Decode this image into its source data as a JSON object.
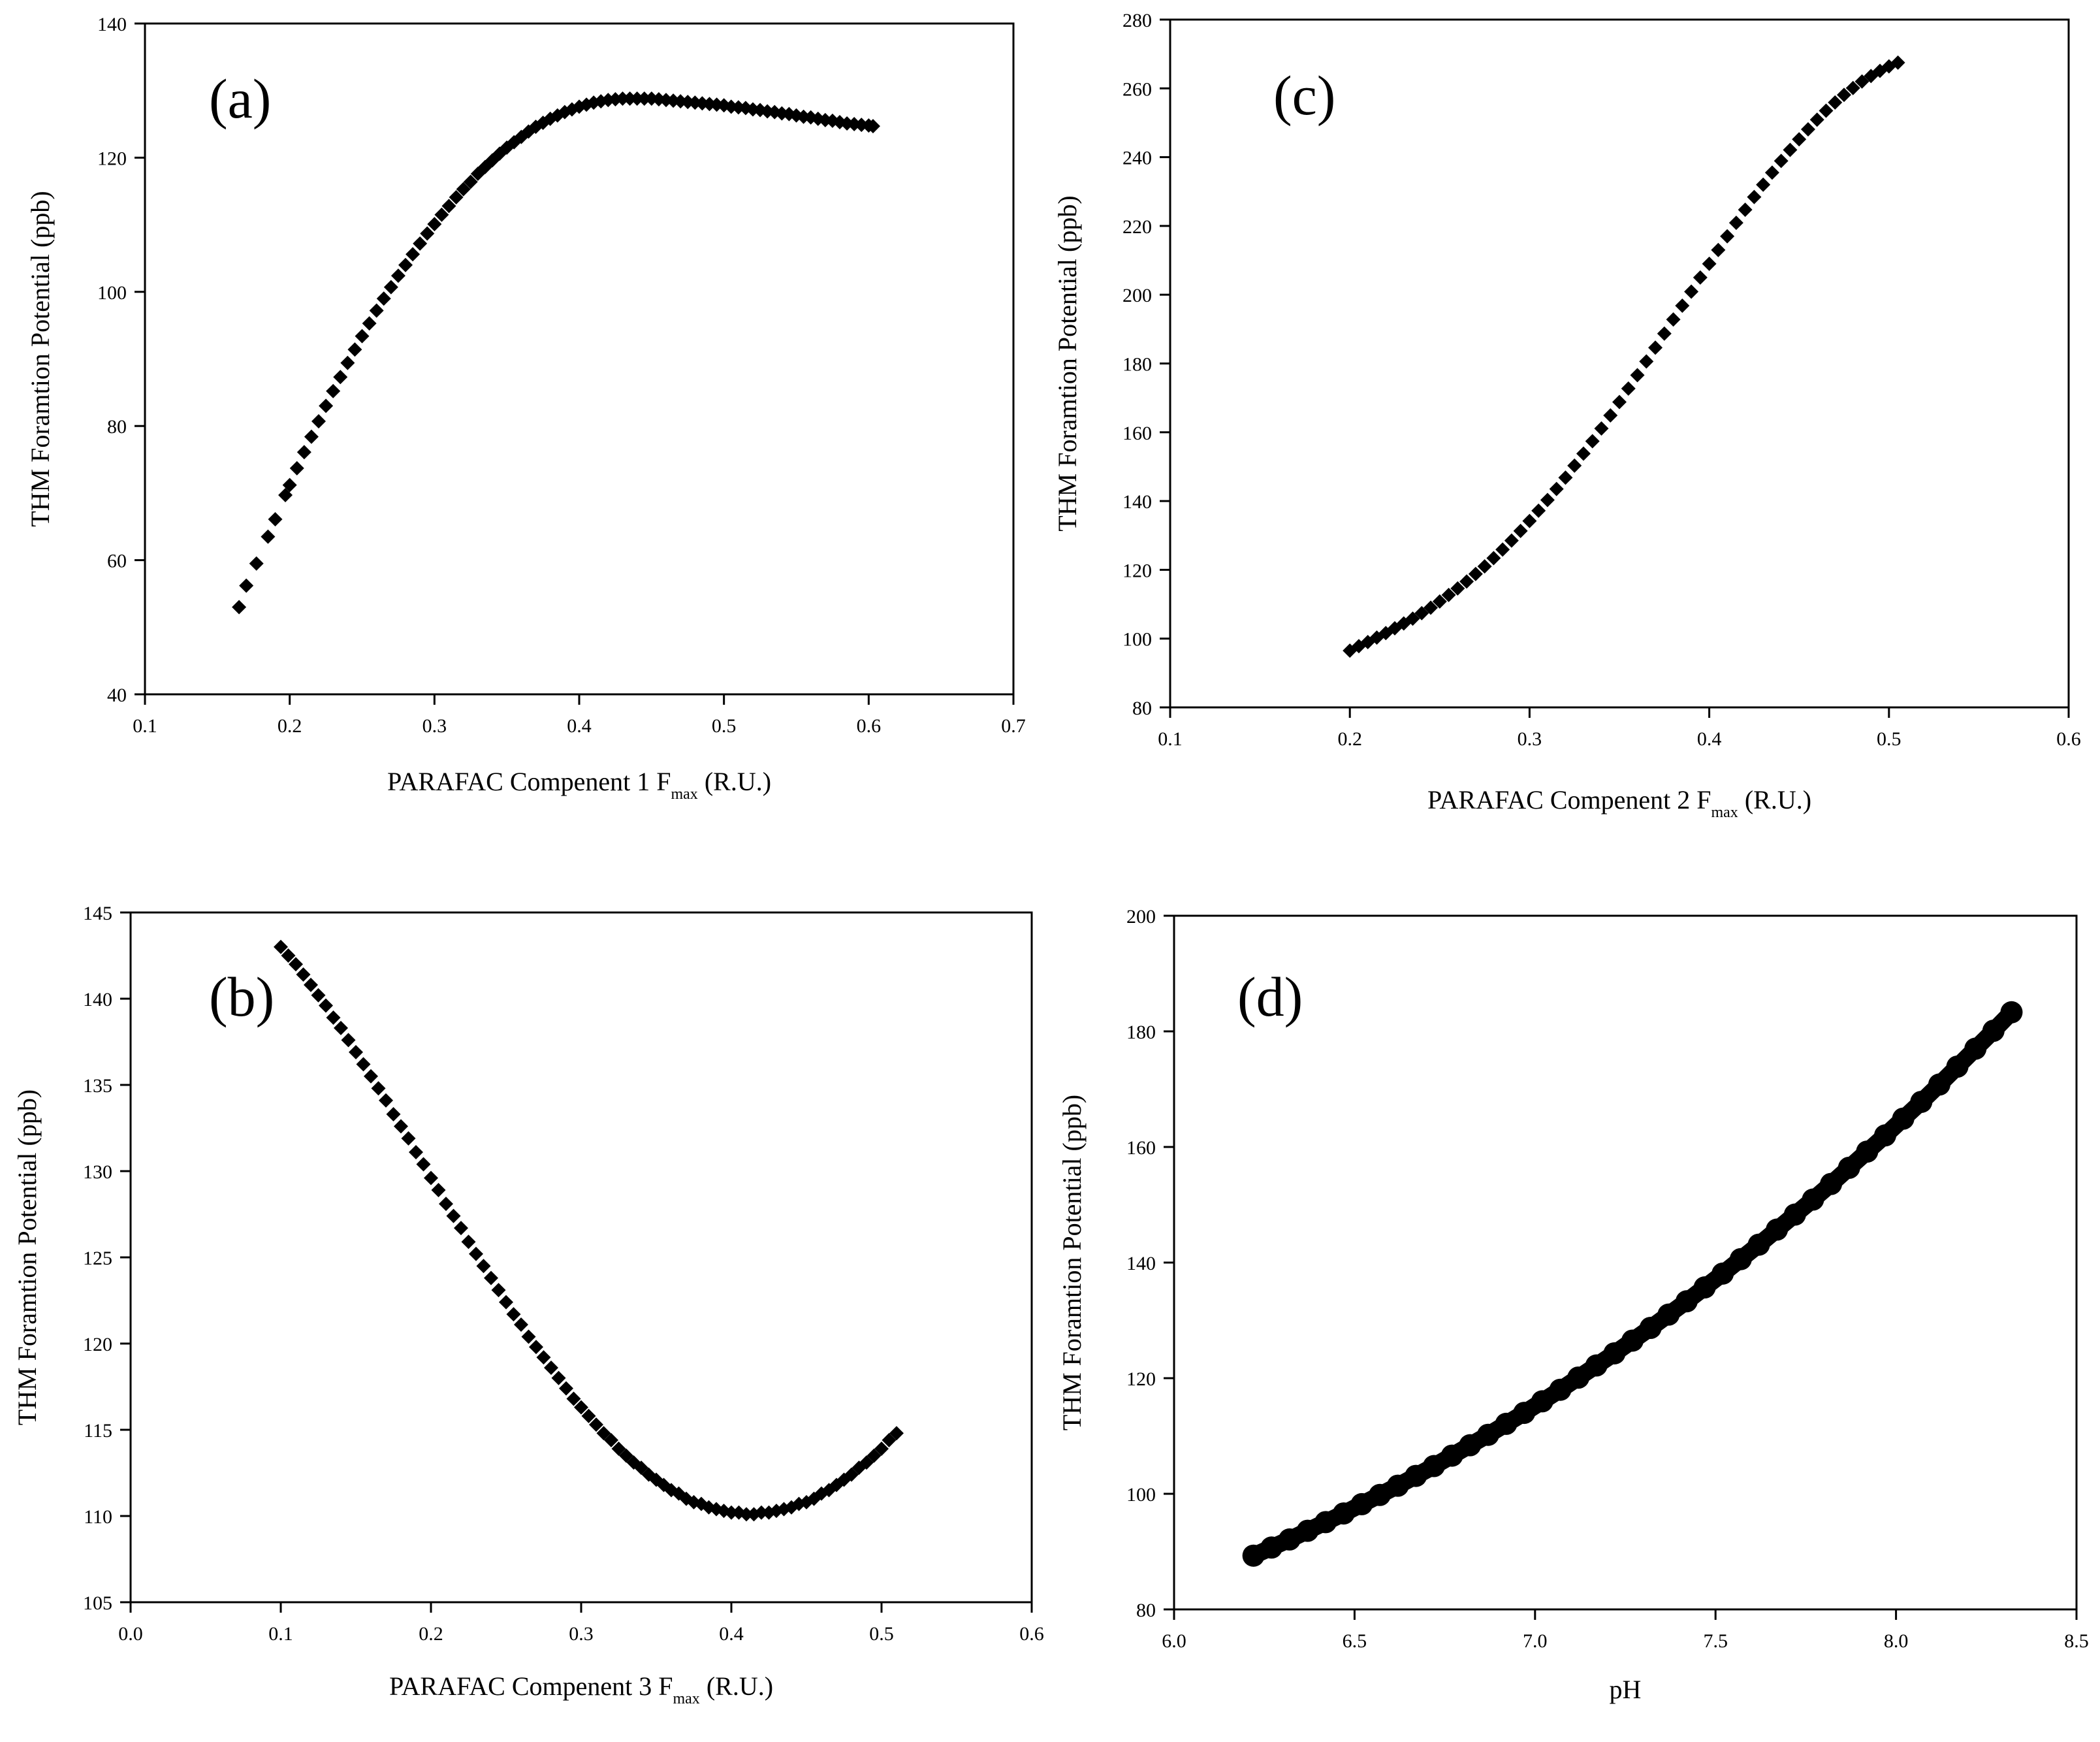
{
  "chart_data": [
    {
      "type": "scatter",
      "panel_label": "(a)",
      "xlabel": "PARAFAC Compenent 1 F",
      "xlabel_sub": "max",
      "xlabel_suffix": " (R.U.)",
      "ylabel": "THM Foramtion Potential (ppb)",
      "xlim": [
        0.1,
        0.7
      ],
      "ylim": [
        40,
        140
      ],
      "xticks": [
        "0.1",
        "0.2",
        "0.3",
        "0.4",
        "0.5",
        "0.6",
        "0.7"
      ],
      "yticks": [
        "40",
        "60",
        "80",
        "100",
        "120",
        "140"
      ],
      "grid": false,
      "series": [
        {
          "x": [
            0.165,
            0.17,
            0.177,
            0.185,
            0.19,
            0.197,
            0.2,
            0.205,
            0.21,
            0.215,
            0.22,
            0.225,
            0.23,
            0.235,
            0.24,
            0.245,
            0.25,
            0.255,
            0.26,
            0.265,
            0.27,
            0.275,
            0.28,
            0.285,
            0.29,
            0.295,
            0.3,
            0.305,
            0.31,
            0.315,
            0.32,
            0.325,
            0.33,
            0.335,
            0.34,
            0.345,
            0.35,
            0.355,
            0.36,
            0.365,
            0.37,
            0.375,
            0.38,
            0.385,
            0.39,
            0.395,
            0.4,
            0.405,
            0.41,
            0.415,
            0.42,
            0.425,
            0.43,
            0.435,
            0.44,
            0.445,
            0.45,
            0.455,
            0.46,
            0.465,
            0.47,
            0.475,
            0.48,
            0.485,
            0.49,
            0.495,
            0.5,
            0.505,
            0.51,
            0.515,
            0.52,
            0.525,
            0.53,
            0.535,
            0.54,
            0.545,
            0.55,
            0.555,
            0.56,
            0.565,
            0.57,
            0.575,
            0.58,
            0.585,
            0.59,
            0.595,
            0.6,
            0.603
          ],
          "y": [
            53.0,
            56.2,
            59.5,
            63.5,
            66.1,
            69.7,
            71.2,
            73.7,
            76.1,
            78.4,
            80.7,
            83.0,
            85.2,
            87.3,
            89.4,
            91.4,
            93.4,
            95.3,
            97.2,
            99.0,
            100.7,
            102.4,
            104.0,
            105.6,
            107.2,
            108.7,
            110.1,
            111.5,
            112.8,
            114.1,
            115.3,
            116.4,
            117.6,
            118.6,
            119.6,
            120.6,
            121.5,
            122.3,
            123.1,
            123.9,
            124.6,
            125.2,
            125.8,
            126.3,
            126.8,
            127.2,
            127.6,
            127.9,
            128.2,
            128.4,
            128.6,
            128.7,
            128.8,
            128.8,
            128.8,
            128.8,
            128.8,
            128.7,
            128.6,
            128.5,
            128.4,
            128.3,
            128.2,
            128.1,
            128.0,
            127.9,
            127.8,
            127.6,
            127.5,
            127.4,
            127.2,
            127.1,
            126.9,
            126.8,
            126.6,
            126.5,
            126.3,
            126.1,
            126.0,
            125.8,
            125.6,
            125.5,
            125.3,
            125.1,
            125.0,
            124.9,
            124.8,
            124.7
          ]
        }
      ]
    },
    {
      "type": "scatter",
      "panel_label": "(c)",
      "xlabel": "PARAFAC Compenent 2 F",
      "xlabel_sub": "max",
      "xlabel_suffix": " (R.U.)",
      "ylabel": "THM Foramtion Potential (ppb)",
      "xlim": [
        0.1,
        0.6
      ],
      "ylim": [
        80,
        280
      ],
      "xticks": [
        "0.1",
        "0.2",
        "0.3",
        "0.4",
        "0.5",
        "0.6"
      ],
      "yticks": [
        "80",
        "100",
        "120",
        "140",
        "160",
        "180",
        "200",
        "220",
        "240",
        "260",
        "280"
      ],
      "grid": false,
      "series": [
        {
          "x": [
            0.2,
            0.205,
            0.21,
            0.215,
            0.22,
            0.225,
            0.23,
            0.235,
            0.24,
            0.245,
            0.25,
            0.255,
            0.26,
            0.265,
            0.27,
            0.275,
            0.28,
            0.285,
            0.29,
            0.295,
            0.3,
            0.305,
            0.31,
            0.315,
            0.32,
            0.325,
            0.33,
            0.335,
            0.34,
            0.345,
            0.35,
            0.355,
            0.36,
            0.365,
            0.37,
            0.375,
            0.38,
            0.385,
            0.39,
            0.395,
            0.4,
            0.405,
            0.41,
            0.415,
            0.42,
            0.425,
            0.43,
            0.435,
            0.44,
            0.445,
            0.45,
            0.455,
            0.46,
            0.465,
            0.47,
            0.475,
            0.48,
            0.485,
            0.49,
            0.495,
            0.5,
            0.505
          ],
          "y": [
            96.5,
            97.8,
            99.0,
            100.3,
            101.6,
            103.0,
            104.4,
            105.8,
            107.4,
            109.0,
            110.8,
            112.7,
            114.6,
            116.6,
            118.8,
            121.0,
            123.4,
            125.9,
            128.5,
            131.3,
            134.2,
            137.2,
            140.3,
            143.5,
            146.8,
            150.3,
            153.8,
            157.4,
            161.1,
            164.9,
            168.8,
            172.7,
            176.6,
            180.6,
            184.6,
            188.7,
            192.8,
            196.8,
            200.9,
            205.0,
            209.0,
            213.0,
            217.0,
            220.9,
            224.7,
            228.4,
            232.0,
            235.5,
            238.9,
            242.1,
            245.2,
            248.1,
            250.9,
            253.5,
            255.9,
            258.1,
            260.1,
            262.0,
            263.6,
            265.1,
            266.4,
            267.5
          ]
        }
      ]
    },
    {
      "type": "scatter",
      "panel_label": "(b)",
      "xlabel": "PARAFAC Compenent 3 F",
      "xlabel_sub": "max",
      "xlabel_suffix": " (R.U.)",
      "ylabel": "THM Foramtion Potential (ppb)",
      "xlim": [
        0.0,
        0.6
      ],
      "ylim": [
        105,
        145
      ],
      "xticks": [
        "0.0",
        "0.1",
        "0.2",
        "0.3",
        "0.4",
        "0.5",
        "0.6"
      ],
      "yticks": [
        "105",
        "110",
        "115",
        "120",
        "125",
        "130",
        "135",
        "140",
        "145"
      ],
      "grid": false,
      "series": [
        {
          "x": [
            0.1,
            0.105,
            0.11,
            0.115,
            0.12,
            0.125,
            0.13,
            0.135,
            0.14,
            0.145,
            0.15,
            0.155,
            0.16,
            0.165,
            0.17,
            0.175,
            0.18,
            0.185,
            0.19,
            0.195,
            0.2,
            0.205,
            0.21,
            0.215,
            0.22,
            0.225,
            0.23,
            0.235,
            0.24,
            0.245,
            0.25,
            0.255,
            0.26,
            0.265,
            0.27,
            0.275,
            0.28,
            0.285,
            0.29,
            0.295,
            0.3,
            0.305,
            0.31,
            0.315,
            0.32,
            0.325,
            0.33,
            0.335,
            0.34,
            0.345,
            0.35,
            0.355,
            0.36,
            0.365,
            0.37,
            0.375,
            0.38,
            0.385,
            0.39,
            0.395,
            0.4,
            0.405,
            0.41,
            0.415,
            0.42,
            0.425,
            0.43,
            0.435,
            0.44,
            0.445,
            0.45,
            0.455,
            0.46,
            0.465,
            0.47,
            0.475,
            0.48,
            0.485,
            0.49,
            0.495,
            0.5,
            0.505,
            0.51
          ],
          "y": [
            143.0,
            142.5,
            142.0,
            141.4,
            140.8,
            140.2,
            139.6,
            138.9,
            138.3,
            137.6,
            136.9,
            136.2,
            135.5,
            134.8,
            134.1,
            133.3,
            132.6,
            131.9,
            131.1,
            130.4,
            129.6,
            128.9,
            128.1,
            127.4,
            126.7,
            125.9,
            125.2,
            124.5,
            123.8,
            123.1,
            122.4,
            121.7,
            121.1,
            120.4,
            119.8,
            119.2,
            118.6,
            118.0,
            117.4,
            116.8,
            116.3,
            115.8,
            115.3,
            114.8,
            114.4,
            113.9,
            113.5,
            113.1,
            112.8,
            112.4,
            112.1,
            111.8,
            111.5,
            111.3,
            111.0,
            110.8,
            110.7,
            110.5,
            110.4,
            110.3,
            110.2,
            110.2,
            110.1,
            110.1,
            110.2,
            110.2,
            110.3,
            110.4,
            110.5,
            110.7,
            110.8,
            111.0,
            111.3,
            111.5,
            111.8,
            112.1,
            112.4,
            112.8,
            113.1,
            113.5,
            113.9,
            114.4,
            114.8
          ]
        }
      ]
    },
    {
      "type": "scatter",
      "panel_label": "(d)",
      "xlabel": "pH",
      "xlabel_sub": "",
      "xlabel_suffix": "",
      "ylabel": "THM Foramtion Potential (ppb)",
      "xlim": [
        6.0,
        8.5
      ],
      "ylim": [
        80,
        200
      ],
      "xticks": [
        "6.0",
        "6.5",
        "7.0",
        "7.5",
        "8.0",
        "8.5"
      ],
      "yticks": [
        "80",
        "100",
        "120",
        "140",
        "160",
        "180",
        "200"
      ],
      "grid": false,
      "series": [
        {
          "x": [
            6.22,
            6.27,
            6.32,
            6.37,
            6.42,
            6.47,
            6.52,
            6.57,
            6.62,
            6.67,
            6.72,
            6.77,
            6.82,
            6.87,
            6.92,
            6.97,
            7.02,
            7.07,
            7.12,
            7.17,
            7.22,
            7.27,
            7.32,
            7.37,
            7.42,
            7.47,
            7.52,
            7.57,
            7.62,
            7.67,
            7.72,
            7.77,
            7.82,
            7.87,
            7.92,
            7.97,
            8.02,
            8.07,
            8.12,
            8.17,
            8.22,
            8.27,
            8.32
          ],
          "y": [
            89.3,
            90.7,
            92.1,
            93.6,
            95.1,
            96.6,
            98.2,
            99.8,
            101.4,
            103.1,
            104.8,
            106.6,
            108.4,
            110.2,
            112.1,
            114.0,
            116.0,
            118.0,
            120.1,
            122.2,
            124.3,
            126.5,
            128.7,
            131.0,
            133.3,
            135.7,
            138.1,
            140.6,
            143.1,
            145.7,
            148.3,
            150.9,
            153.6,
            156.4,
            159.2,
            162.0,
            164.9,
            167.8,
            170.8,
            173.9,
            177.0,
            180.1,
            183.3
          ]
        }
      ]
    }
  ]
}
